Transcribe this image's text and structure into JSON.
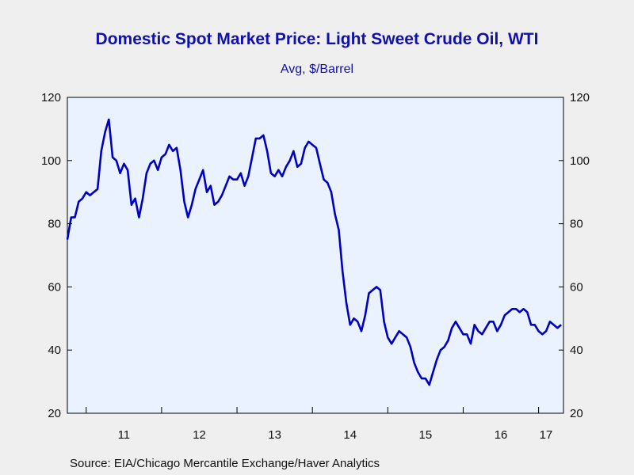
{
  "chart_data": {
    "type": "line",
    "title": "Domestic Spot Market Price: Light Sweet Crude Oil, WTI",
    "subtitle": "Avg, $/Barrel",
    "source": "Source:  EIA/Chicago Mercantile Exchange/Haver Analytics",
    "xlabel": "",
    "ylabel": "",
    "ylim": [
      20,
      120
    ],
    "yticks": [
      20,
      40,
      60,
      80,
      100,
      120
    ],
    "xlim": [
      2010.75,
      2017.33
    ],
    "x_tick_labels": [
      "11",
      "12",
      "13",
      "14",
      "15",
      "16",
      "17"
    ],
    "grid": false,
    "line_color": "#0000c0",
    "plot_background": "#eaf2ff",
    "series": [
      {
        "x": [
          2010.75,
          2010.8,
          2010.85,
          2010.9,
          2010.95,
          2011.0,
          2011.05,
          2011.1,
          2011.15,
          2011.2,
          2011.25,
          2011.3,
          2011.35,
          2011.4,
          2011.45,
          2011.5,
          2011.55,
          2011.6,
          2011.65,
          2011.7,
          2011.75,
          2011.8,
          2011.85,
          2011.9,
          2011.95,
          2012.0,
          2012.05,
          2012.1,
          2012.15,
          2012.2,
          2012.25,
          2012.3,
          2012.35,
          2012.4,
          2012.45,
          2012.5,
          2012.55,
          2012.6,
          2012.65,
          2012.7,
          2012.75,
          2012.8,
          2012.85,
          2012.9,
          2012.95,
          2013.0,
          2013.05,
          2013.1,
          2013.15,
          2013.2,
          2013.25,
          2013.3,
          2013.35,
          2013.4,
          2013.45,
          2013.5,
          2013.55,
          2013.6,
          2013.65,
          2013.7,
          2013.75,
          2013.8,
          2013.85,
          2013.9,
          2013.95,
          2014.0,
          2014.05,
          2014.1,
          2014.15,
          2014.2,
          2014.25,
          2014.3,
          2014.35,
          2014.4,
          2014.45,
          2014.5,
          2014.55,
          2014.6,
          2014.65,
          2014.7,
          2014.75,
          2014.8,
          2014.85,
          2014.9,
          2014.95,
          2015.0,
          2015.05,
          2015.1,
          2015.15,
          2015.2,
          2015.25,
          2015.3,
          2015.35,
          2015.4,
          2015.45,
          2015.5,
          2015.55,
          2015.6,
          2015.65,
          2015.7,
          2015.75,
          2015.8,
          2015.85,
          2015.9,
          2015.95,
          2016.0,
          2016.05,
          2016.1,
          2016.15,
          2016.2,
          2016.25,
          2016.3,
          2016.35,
          2016.4,
          2016.45,
          2016.5,
          2016.55,
          2016.6,
          2016.65,
          2016.7,
          2016.75,
          2016.8,
          2016.85,
          2016.9,
          2016.95,
          2017.0,
          2017.05,
          2017.1,
          2017.15,
          2017.2,
          2017.25,
          2017.3
        ],
        "values": [
          75,
          82,
          82,
          87,
          88,
          90,
          89,
          90,
          91,
          103,
          109,
          113,
          101,
          100,
          96,
          99,
          97,
          86,
          88,
          82,
          88,
          96,
          99,
          100,
          97,
          101,
          102,
          105,
          103,
          104,
          97,
          87,
          82,
          86,
          91,
          94,
          97,
          90,
          92,
          86,
          87,
          89,
          92,
          95,
          94,
          94,
          96,
          92,
          95,
          101,
          107,
          107,
          108,
          103,
          96,
          95,
          97,
          95,
          98,
          100,
          103,
          98,
          99,
          104,
          106,
          105,
          104,
          99,
          94,
          93,
          90,
          83,
          78,
          65,
          55,
          48,
          50,
          49,
          46,
          51,
          58,
          59,
          60,
          59,
          49,
          44,
          42,
          44,
          46,
          45,
          44,
          41,
          36,
          33,
          31,
          31,
          29,
          33,
          37,
          40,
          41,
          43,
          47,
          49,
          47,
          45,
          45,
          42,
          48,
          46,
          45,
          47,
          49,
          49,
          46,
          48,
          51,
          52,
          53,
          53,
          52,
          53,
          52,
          48,
          48,
          46,
          45,
          46,
          49,
          48,
          47,
          48
        ]
      }
    ]
  }
}
